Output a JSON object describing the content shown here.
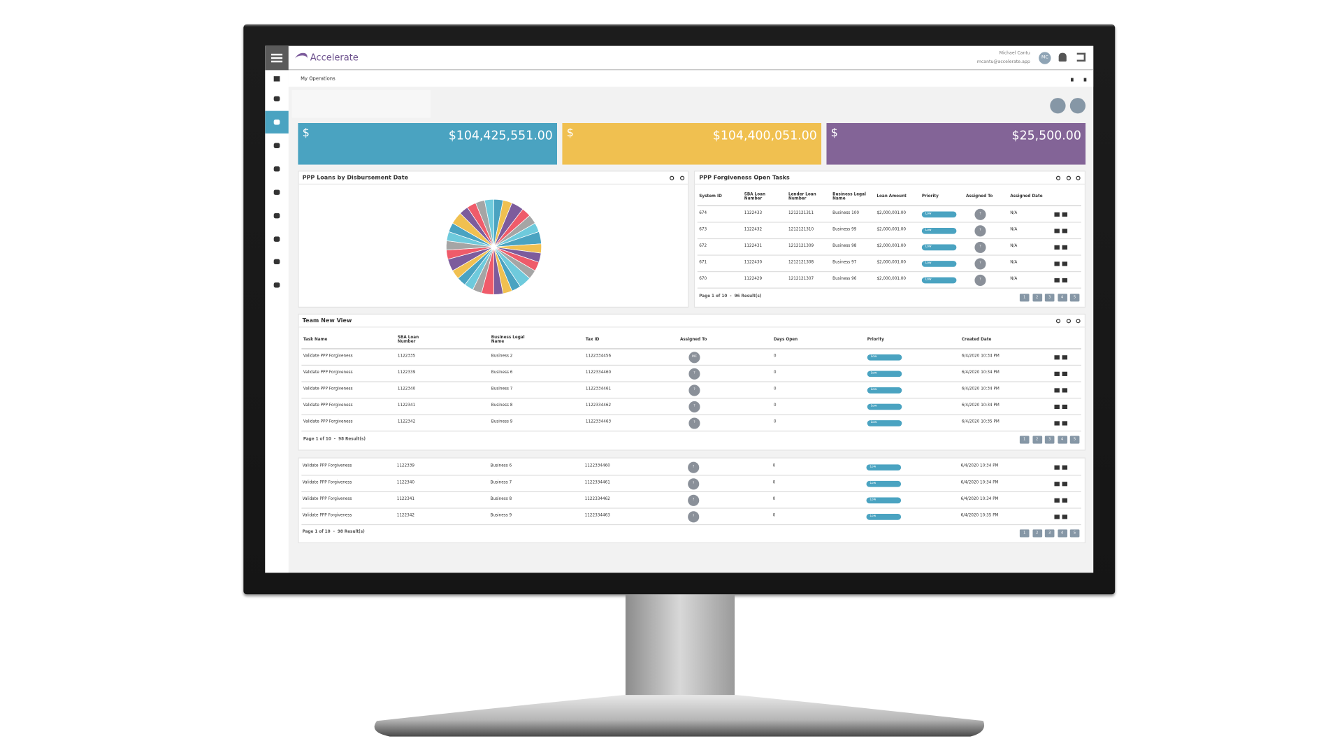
{
  "header": {
    "logo": "Accelerate",
    "user_name": "Michael Cantu",
    "user_email": "mcantu@accelerate.app",
    "avatar": "MC"
  },
  "breadcrumb": "My Operations",
  "kpis": [
    {
      "symbol": "$",
      "value": "$104,425,551.00",
      "color": "#4aa3c1"
    },
    {
      "symbol": "$",
      "value": "$104,400,051.00",
      "color": "#f0c050"
    },
    {
      "symbol": "$",
      "value": "$25,500.00",
      "color": "#836497"
    }
  ],
  "chart_data": {
    "type": "pie",
    "title": "PPP Loans by Disbursement Date",
    "values": [
      3,
      3,
      4,
      3,
      3,
      3,
      4,
      3,
      3,
      3,
      3,
      4,
      3,
      3,
      3,
      4,
      3,
      3,
      3,
      3,
      4,
      3,
      3,
      3,
      3,
      4,
      3,
      3,
      3,
      3
    ],
    "colors": [
      "#4aa3c1",
      "#f0c050",
      "#7d5c9c",
      "#ef5b6a",
      "#a5a5a5",
      "#6ecadc"
    ]
  },
  "tasks_panel": {
    "title": "PPP Forgiveness Open Tasks",
    "columns": [
      "System ID",
      "SBA Loan Number",
      "Lender Loan Number",
      "Business Legal Name",
      "Loan Amount",
      "Priority",
      "Assigned To",
      "Assigned Date"
    ],
    "rows": [
      [
        "674",
        "1122433",
        "1212121311",
        "Business 100",
        "$2,000,001.00",
        "Low",
        "?",
        "N/A"
      ],
      [
        "673",
        "1122432",
        "1212121310",
        "Business 99",
        "$2,000,001.00",
        "Low",
        "?",
        "N/A"
      ],
      [
        "672",
        "1122431",
        "1212121309",
        "Business 98",
        "$2,000,001.00",
        "Low",
        "?",
        "N/A"
      ],
      [
        "671",
        "1122430",
        "1212121308",
        "Business 97",
        "$2,000,001.00",
        "Low",
        "?",
        "N/A"
      ],
      [
        "670",
        "1122429",
        "1212121307",
        "Business 96",
        "$2,000,001.00",
        "Low",
        "?",
        "N/A"
      ]
    ],
    "footer": "Page 1 of 10  -  96 Result(s)",
    "pages": [
      "1",
      "2",
      "3",
      "4",
      "5"
    ]
  },
  "team_panel": {
    "title": "Team New View",
    "columns": [
      "Task Name",
      "SBA Loan Number",
      "Business Legal Name",
      "Tax ID",
      "Assigned To",
      "Days Open",
      "Priority",
      "Created Date"
    ],
    "rows": [
      [
        "Validate PPP Forgiveness",
        "1122335",
        "Business 2",
        "1122334456",
        "MC",
        "0",
        "Low",
        "6/4/2020 10:34 PM"
      ],
      [
        "Validate PPP Forgiveness",
        "1122339",
        "Business 6",
        "1122334460",
        "?",
        "0",
        "Low",
        "6/4/2020 10:34 PM"
      ],
      [
        "Validate PPP Forgiveness",
        "1122340",
        "Business 7",
        "1122334461",
        "?",
        "0",
        "Low",
        "6/4/2020 10:34 PM"
      ],
      [
        "Validate PPP Forgiveness",
        "1122341",
        "Business 8",
        "1122334462",
        "?",
        "0",
        "Low",
        "6/4/2020 10:34 PM"
      ],
      [
        "Validate PPP Forgiveness",
        "1122342",
        "Business 9",
        "1122334463",
        "?",
        "0",
        "Low",
        "6/4/2020 10:35 PM"
      ]
    ],
    "footer": "Page 1 of 10  -  98 Result(s)",
    "pages": [
      "1",
      "2",
      "3",
      "4",
      "5"
    ]
  },
  "lower_table": {
    "rows": [
      [
        "Validate PPP Forgiveness",
        "1122339",
        "Business 6",
        "1122334460",
        "?",
        "0",
        "Low",
        "6/4/2020 10:34 PM"
      ],
      [
        "Validate PPP Forgiveness",
        "1122340",
        "Business 7",
        "1122334461",
        "?",
        "0",
        "Low",
        "6/4/2020 10:34 PM"
      ],
      [
        "Validate PPP Forgiveness",
        "1122341",
        "Business 8",
        "1122334462",
        "?",
        "0",
        "Low",
        "6/4/2020 10:34 PM"
      ],
      [
        "Validate PPP Forgiveness",
        "1122342",
        "Business 9",
        "1122334463",
        "?",
        "0",
        "Low",
        "6/4/2020 10:35 PM"
      ]
    ],
    "footer": "Page 1 of 10  -  98 Result(s)",
    "pages": [
      "1",
      "2",
      "3",
      "4",
      "5"
    ]
  }
}
